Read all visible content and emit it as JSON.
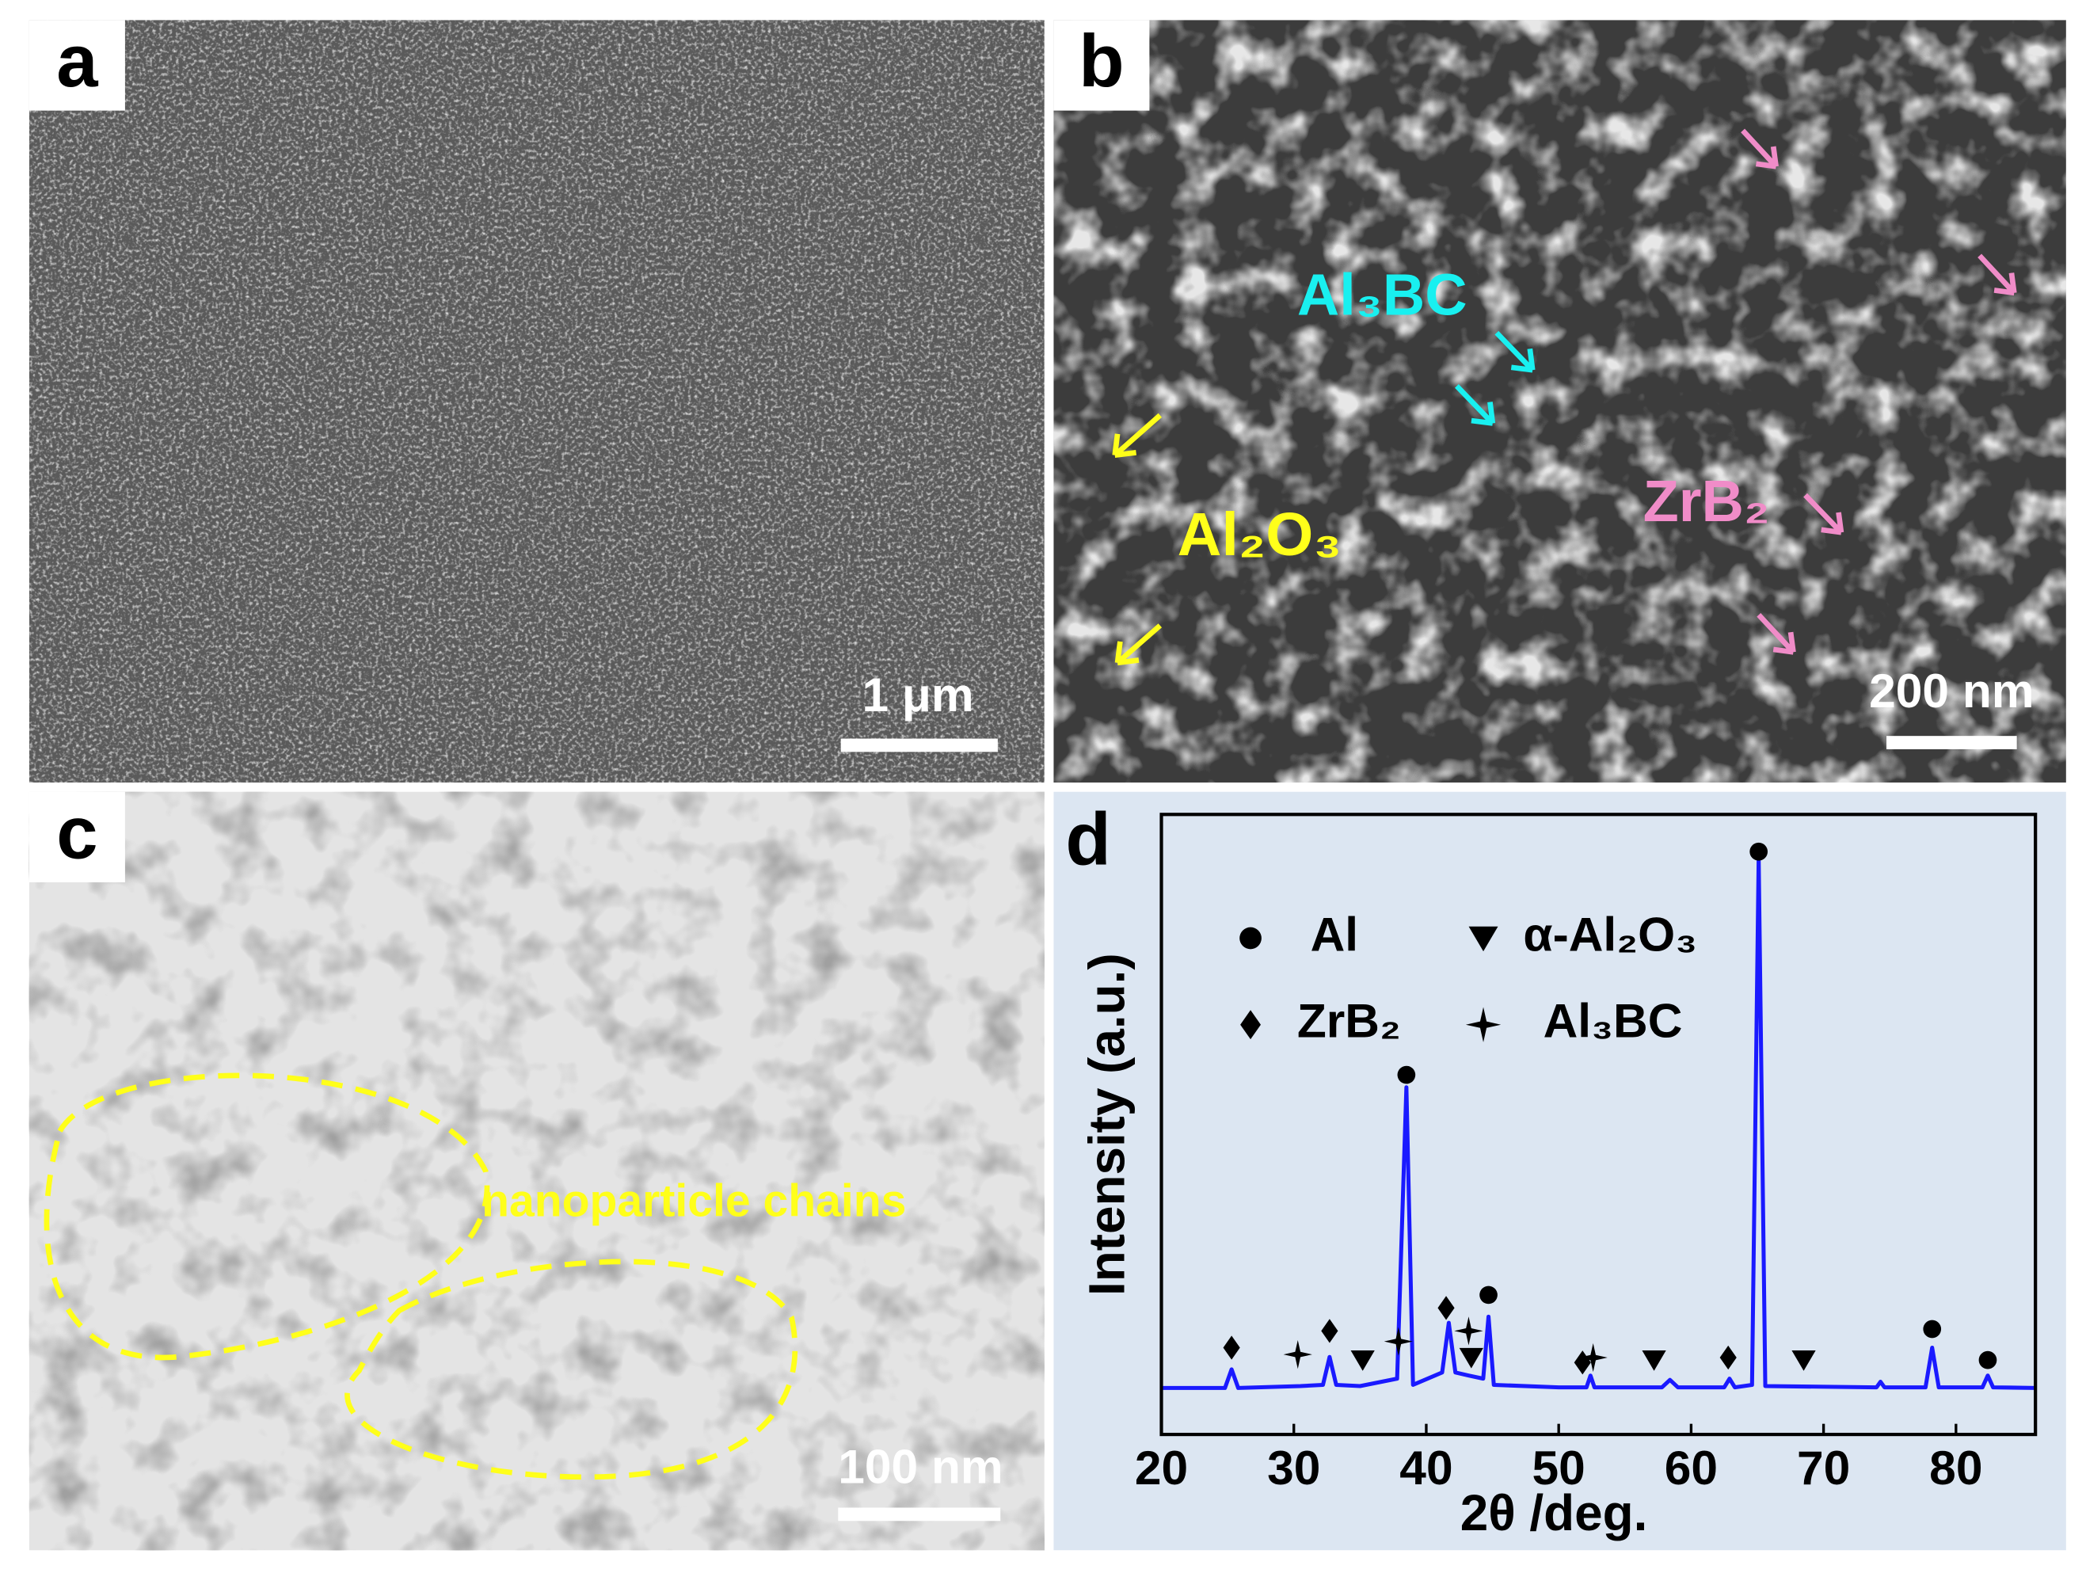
{
  "panels": [
    {
      "label": "a",
      "scale_bar": "1 μm"
    },
    {
      "label": "b",
      "scale_bar": "200 nm",
      "annotations": [
        "Al₃BC",
        "Al₂O₃",
        "ZrB₂"
      ]
    },
    {
      "label": "c",
      "scale_bar": "100 nm",
      "annotation": "nanoparticle chains"
    }
  ],
  "chart_data": {
    "type": "line",
    "panel_label": "d",
    "xlabel": "2θ /deg.",
    "ylabel": "Intensity (a.u.)",
    "x": [
      20,
      24.8,
      25.3,
      25.8,
      30.5,
      32.2,
      32.7,
      33.2,
      35,
      37.8,
      38.5,
      39.0,
      41.2,
      41.7,
      42.2,
      43.2,
      44.3,
      44.7,
      45.1,
      50,
      52.1,
      52.4,
      52.7,
      57.8,
      58.4,
      59,
      62.5,
      62.9,
      63.3,
      64.6,
      65.1,
      65.6,
      74,
      74.3,
      74.6,
      77.7,
      78.2,
      78.7,
      82.0,
      82.4,
      82.8,
      86
    ],
    "values": [
      7.5,
      7.5,
      10.5,
      7.5,
      7.8,
      8,
      12.5,
      8,
      7.8,
      9,
      56,
      8,
      10,
      18,
      10,
      9.5,
      9,
      19,
      8,
      7.6,
      7.6,
      9.5,
      7.6,
      7.6,
      8.8,
      7.6,
      7.6,
      9,
      7.6,
      8,
      93,
      7.8,
      7.6,
      8.5,
      7.6,
      7.6,
      14,
      7.6,
      7.6,
      9.5,
      7.6,
      7.5
    ],
    "color": "#1a1aff",
    "xlim": [
      20,
      86
    ],
    "xticks": [
      20,
      30,
      40,
      50,
      60,
      70,
      80
    ],
    "ylim": [
      0,
      100
    ],
    "legend": [
      {
        "symbol": "circle",
        "label": "Al",
        "peaks": {
          "x": [
            38.5,
            44.7,
            65.1,
            78.2,
            82.4
          ],
          "y": [
            58,
            22.5,
            94,
            17,
            12
          ]
        }
      },
      {
        "symbol": "triangle-down",
        "label": "α-Al₂O₃",
        "peaks": {
          "x": [
            35.2,
            43.4,
            57.2,
            68.5
          ],
          "y": [
            12,
            12.4,
            12,
            12
          ]
        }
      },
      {
        "symbol": "diamond",
        "label": "ZrB₂",
        "peaks": {
          "x": [
            25.3,
            32.7,
            41.5,
            51.8,
            62.8
          ],
          "y": [
            14,
            16.7,
            20.4,
            11.6,
            12.4
          ]
        }
      },
      {
        "symbol": "star",
        "label": "Al₃BC",
        "peaks": {
          "x": [
            30.3,
            37.9,
            43.2,
            52.6
          ],
          "y": [
            12.9,
            15,
            16.7,
            12.4
          ]
        }
      }
    ]
  }
}
